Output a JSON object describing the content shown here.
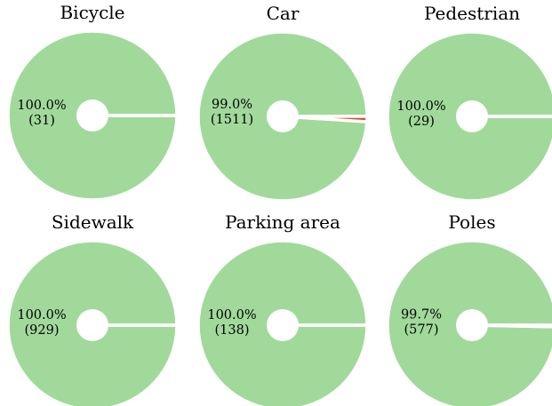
{
  "chart_data": [
    {
      "type": "pie",
      "title": "Bicycle",
      "values": [
        100.0,
        0.0
      ],
      "value_labels": [
        "100.0%",
        null
      ],
      "counts": [
        31,
        0
      ],
      "count_labels": [
        "(31)",
        null
      ],
      "colors": [
        "#a1d99b",
        "#e34a33"
      ]
    },
    {
      "type": "pie",
      "title": "Car",
      "values": [
        99.0,
        1.0
      ],
      "value_labels": [
        "99.0%",
        null
      ],
      "counts": [
        1511,
        15
      ],
      "count_labels": [
        "(1511)",
        null
      ],
      "colors": [
        "#a1d99b",
        "#e34a33"
      ]
    },
    {
      "type": "pie",
      "title": "Pedestrian",
      "values": [
        100.0,
        0.0
      ],
      "value_labels": [
        "100.0%",
        null
      ],
      "counts": [
        29,
        0
      ],
      "count_labels": [
        "(29)",
        null
      ],
      "colors": [
        "#a1d99b",
        "#e34a33"
      ]
    },
    {
      "type": "pie",
      "title": "Sidewalk",
      "values": [
        100.0,
        0.0
      ],
      "value_labels": [
        "100.0%",
        null
      ],
      "counts": [
        929,
        0
      ],
      "count_labels": [
        "(929)",
        null
      ],
      "colors": [
        "#a1d99b",
        "#e34a33"
      ]
    },
    {
      "type": "pie",
      "title": "Parking area",
      "values": [
        100.0,
        0.0
      ],
      "value_labels": [
        "100.0%",
        null
      ],
      "counts": [
        138,
        0
      ],
      "count_labels": [
        "(138)",
        null
      ],
      "colors": [
        "#a1d99b",
        "#e34a33"
      ]
    },
    {
      "type": "pie",
      "title": "Poles",
      "values": [
        99.7,
        0.3
      ],
      "value_labels": [
        "99.7%",
        null
      ],
      "counts": [
        577,
        2
      ],
      "count_labels": [
        "(577)",
        null
      ],
      "colors": [
        "#a1d99b",
        "#e34a33"
      ]
    }
  ]
}
